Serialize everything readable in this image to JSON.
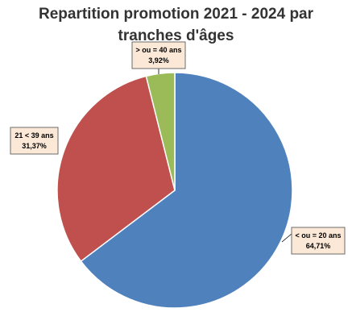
{
  "title_line1": "Repartition promotion 2021 - 2024 par",
  "title_line2": "tranches d'âges",
  "chart_data": {
    "type": "pie",
    "title": "Repartition promotion 2021 - 2024 par tranches d'âges",
    "start_angle_deg": 0,
    "direction": "clockwise",
    "slices": [
      {
        "label": "< ou = 20 ans",
        "value": 64.71,
        "value_label": "64,71%",
        "color": "#4f81bd"
      },
      {
        "label": "21 < 39 ans",
        "value": 31.37,
        "value_label": "31,37%",
        "color": "#c0504d"
      },
      {
        "label": "> ou = 40 ans",
        "value": 3.92,
        "value_label": "3,92%",
        "color": "#9bbb59"
      }
    ]
  }
}
